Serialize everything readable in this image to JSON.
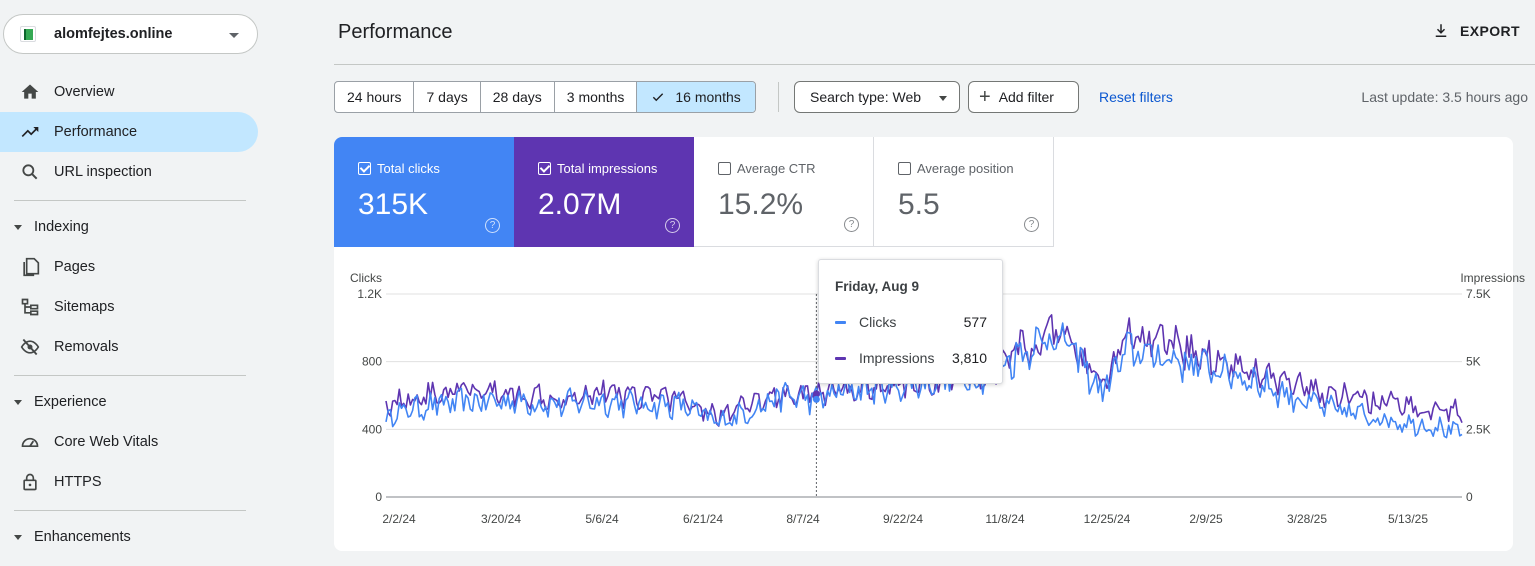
{
  "property": {
    "name": "alomfejtes.online"
  },
  "sidebar": {
    "items": [
      {
        "label": "Overview",
        "icon": "home-icon"
      },
      {
        "label": "Performance",
        "icon": "trending-up-icon",
        "active": true
      },
      {
        "label": "URL inspection",
        "icon": "search-icon"
      }
    ],
    "indexing": {
      "label": "Indexing",
      "items": [
        {
          "label": "Pages",
          "icon": "pages-icon"
        },
        {
          "label": "Sitemaps",
          "icon": "sitemap-icon"
        },
        {
          "label": "Removals",
          "icon": "eye-off-icon"
        }
      ]
    },
    "experience": {
      "label": "Experience",
      "items": [
        {
          "label": "Core Web Vitals",
          "icon": "gauge-icon"
        },
        {
          "label": "HTTPS",
          "icon": "lock-icon"
        }
      ]
    },
    "enhancements": {
      "label": "Enhancements"
    }
  },
  "header": {
    "title": "Performance",
    "export_label": "EXPORT"
  },
  "filters": {
    "ranges": [
      "24 hours",
      "7 days",
      "28 days",
      "3 months",
      "16 months"
    ],
    "selected_range": "16 months",
    "search_type": "Search type: Web",
    "add_filter": "Add filter",
    "reset": "Reset filters",
    "last_update": "Last update: 3.5 hours ago"
  },
  "metrics": [
    {
      "label": "Total clicks",
      "value": "315K",
      "checked": true,
      "color": "#4285f4"
    },
    {
      "label": "Total impressions",
      "value": "2.07M",
      "checked": true,
      "color": "#5e35b1"
    },
    {
      "label": "Average CTR",
      "value": "15.2%",
      "checked": false
    },
    {
      "label": "Average position",
      "value": "5.5",
      "checked": false
    }
  ],
  "tooltip": {
    "date": "Friday, Aug 9",
    "rows": [
      {
        "name": "Clicks",
        "value": "577",
        "color": "#4285f4"
      },
      {
        "name": "Impressions",
        "value": "3,810",
        "color": "#5e35b1"
      }
    ]
  },
  "chart_data": {
    "type": "line",
    "left_axis_label": "Clicks",
    "right_axis_label": "Impressions",
    "left_ticks": [
      "0",
      "400",
      "800",
      "1.2K"
    ],
    "right_ticks": [
      "0",
      "2.5K",
      "5K",
      "7.5K"
    ],
    "ylim_left": [
      0,
      1200
    ],
    "ylim_right": [
      0,
      7500
    ],
    "x_ticks": [
      "2/2/24",
      "3/20/24",
      "5/6/24",
      "6/21/24",
      "8/7/24",
      "9/22/24",
      "11/8/24",
      "12/25/24",
      "2/9/25",
      "3/28/25",
      "5/13/25"
    ],
    "x_range": [
      "2024-01-28",
      "2025-05-27"
    ],
    "series": [
      {
        "name": "Clicks",
        "color": "#4285f4",
        "anchors": [
          [
            "2024-01-28",
            480
          ],
          [
            "2024-02-15",
            540
          ],
          [
            "2024-03-05",
            560
          ],
          [
            "2024-03-25",
            570
          ],
          [
            "2024-04-15",
            545
          ],
          [
            "2024-05-01",
            570
          ],
          [
            "2024-05-20",
            550
          ],
          [
            "2024-06-10",
            540
          ],
          [
            "2024-06-25",
            440
          ],
          [
            "2024-07-10",
            510
          ],
          [
            "2024-07-25",
            600
          ],
          [
            "2024-08-09",
            577
          ],
          [
            "2024-08-25",
            640
          ],
          [
            "2024-09-15",
            650
          ],
          [
            "2024-10-05",
            700
          ],
          [
            "2024-10-25",
            720
          ],
          [
            "2024-11-10",
            870
          ],
          [
            "2024-11-25",
            960
          ],
          [
            "2024-12-05",
            830
          ],
          [
            "2024-12-15",
            620
          ],
          [
            "2024-12-28",
            870
          ],
          [
            "2025-01-15",
            820
          ],
          [
            "2025-02-01",
            770
          ],
          [
            "2025-02-20",
            700
          ],
          [
            "2025-03-10",
            600
          ],
          [
            "2025-03-28",
            520
          ],
          [
            "2025-04-15",
            480
          ],
          [
            "2025-05-01",
            440
          ],
          [
            "2025-05-15",
            420
          ],
          [
            "2025-05-27",
            370
          ]
        ]
      },
      {
        "name": "Impressions",
        "color": "#5e35b1",
        "anchors": [
          [
            "2024-01-28",
            3450
          ],
          [
            "2024-02-15",
            3750
          ],
          [
            "2024-03-05",
            3900
          ],
          [
            "2024-03-25",
            3800
          ],
          [
            "2024-04-15",
            3700
          ],
          [
            "2024-05-01",
            3900
          ],
          [
            "2024-05-20",
            3800
          ],
          [
            "2024-06-10",
            3650
          ],
          [
            "2024-06-25",
            3000
          ],
          [
            "2024-07-10",
            3350
          ],
          [
            "2024-07-25",
            3800
          ],
          [
            "2024-08-09",
            3810
          ],
          [
            "2024-08-25",
            4000
          ],
          [
            "2024-09-15",
            4150
          ],
          [
            "2024-10-05",
            4300
          ],
          [
            "2024-10-25",
            4500
          ],
          [
            "2024-11-10",
            5500
          ],
          [
            "2024-11-25",
            6000
          ],
          [
            "2024-12-05",
            5300
          ],
          [
            "2024-12-15",
            4100
          ],
          [
            "2024-12-28",
            5900
          ],
          [
            "2025-01-15",
            5600
          ],
          [
            "2025-02-01",
            5200
          ],
          [
            "2025-02-20",
            4700
          ],
          [
            "2025-03-10",
            4100
          ],
          [
            "2025-03-28",
            3800
          ],
          [
            "2025-04-15",
            3550
          ],
          [
            "2025-05-01",
            3350
          ],
          [
            "2025-05-15",
            3250
          ],
          [
            "2025-05-27",
            3150
          ]
        ]
      }
    ],
    "hover_date": "2024-08-09"
  }
}
